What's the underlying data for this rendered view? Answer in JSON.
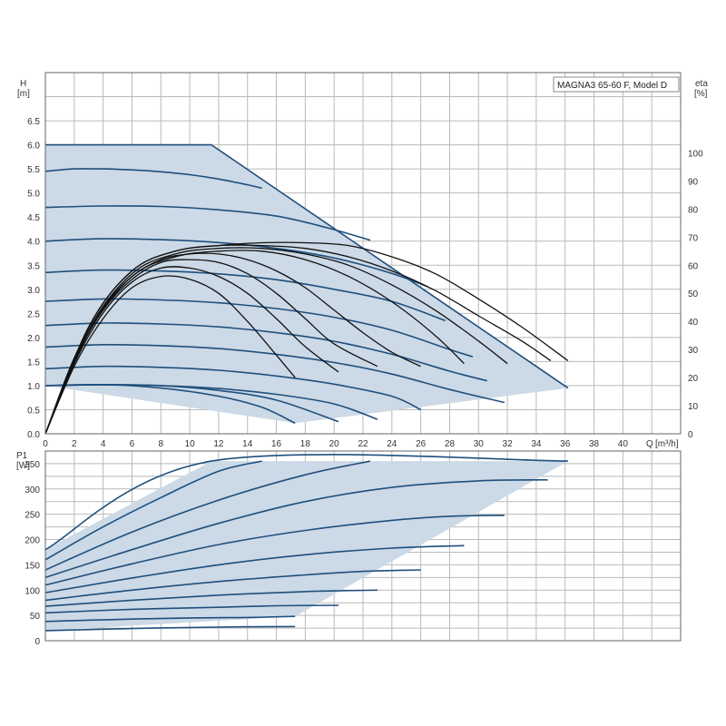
{
  "chart_data": [
    {
      "type": "line",
      "title": "MAGNA3 65-60 F, Model D",
      "xlabel": "Q",
      "xunit": "[m³/h]",
      "ylabel": "H",
      "yunit": "[m]",
      "y2label": "eta",
      "y2unit": "[%]",
      "xlim": [
        0,
        44
      ],
      "ylim": [
        0,
        7.5
      ],
      "y2lim": [
        0,
        128.57
      ],
      "grid": true,
      "x_ticks": [
        "0",
        "2",
        "4",
        "6",
        "8",
        "10",
        "12",
        "14",
        "16",
        "18",
        "20",
        "22",
        "24",
        "26",
        "28",
        "30",
        "32",
        "34",
        "36",
        "38",
        "40"
      ],
      "y_ticks": [
        "0.0",
        "0.5",
        "1.0",
        "1.5",
        "2.0",
        "2.5",
        "3.0",
        "3.5",
        "4.0",
        "4.5",
        "5.0",
        "5.5",
        "6.0",
        "6.5"
      ],
      "y2_ticks": [
        "0",
        "10",
        "20",
        "30",
        "40",
        "50",
        "60",
        "70",
        "80",
        "90",
        "100"
      ],
      "operating_area": {
        "x": [
          0,
          11.5,
          36.2,
          17.3,
          0
        ],
        "y": [
          6.0,
          6.0,
          0.95,
          0.22,
          1.0
        ]
      },
      "pump_curves": [
        {
          "x": [
            0,
            2,
            4,
            6,
            8,
            10,
            11.5
          ],
          "y": [
            6.0,
            6.0,
            6.0,
            6.0,
            6.0,
            6.0,
            6.0
          ]
        },
        {
          "x": [
            0,
            2,
            4,
            6,
            8,
            10,
            12,
            14,
            15.0
          ],
          "y": [
            5.45,
            5.5,
            5.5,
            5.48,
            5.44,
            5.38,
            5.29,
            5.17,
            5.1
          ]
        },
        {
          "x": [
            0,
            4,
            8,
            12,
            16,
            19.5,
            22.5
          ],
          "y": [
            4.7,
            4.73,
            4.72,
            4.65,
            4.52,
            4.28,
            4.02
          ]
        },
        {
          "x": [
            0,
            4,
            8,
            12,
            16,
            20,
            24,
            26.5
          ],
          "y": [
            4.0,
            4.05,
            4.03,
            3.97,
            3.85,
            3.65,
            3.33,
            3.05
          ]
        },
        {
          "x": [
            0,
            4,
            8,
            12,
            16,
            20,
            24,
            27.7
          ],
          "y": [
            3.35,
            3.4,
            3.38,
            3.32,
            3.2,
            3.0,
            2.75,
            2.35
          ]
        },
        {
          "x": [
            0,
            4,
            8,
            12,
            16,
            20,
            24,
            28,
            29.6
          ],
          "y": [
            2.75,
            2.8,
            2.78,
            2.72,
            2.6,
            2.42,
            2.15,
            1.75,
            1.6
          ]
        },
        {
          "x": [
            0,
            4,
            8,
            12,
            16,
            20,
            24,
            28,
            30.6
          ],
          "y": [
            2.25,
            2.3,
            2.28,
            2.22,
            2.1,
            1.92,
            1.65,
            1.3,
            1.1
          ]
        },
        {
          "x": [
            0,
            4,
            8,
            12,
            16,
            20,
            24,
            28,
            31.8
          ],
          "y": [
            1.8,
            1.85,
            1.83,
            1.77,
            1.65,
            1.48,
            1.24,
            0.92,
            0.65
          ]
        },
        {
          "x": [
            0,
            4,
            8,
            12,
            16,
            20,
            24,
            26.0
          ],
          "y": [
            1.35,
            1.4,
            1.38,
            1.32,
            1.2,
            1.03,
            0.78,
            0.5
          ]
        },
        {
          "x": [
            0,
            4,
            8,
            12,
            16,
            20,
            23.0
          ],
          "y": [
            1.0,
            1.02,
            1.0,
            0.94,
            0.82,
            0.62,
            0.3
          ]
        },
        {
          "x": [
            0,
            4,
            8,
            12,
            16,
            20.3
          ],
          "y": [
            1.0,
            1.02,
            1.0,
            0.9,
            0.7,
            0.25
          ]
        },
        {
          "x": [
            0,
            4,
            8,
            12,
            15,
            17.3
          ],
          "y": [
            1.0,
            1.02,
            0.95,
            0.78,
            0.55,
            0.22
          ]
        }
      ],
      "efficiency_curves": [
        {
          "x": [
            0,
            2,
            4,
            6,
            8,
            10,
            12,
            14,
            16,
            17.3
          ],
          "eta": [
            0,
            24,
            41,
            52,
            56,
            55,
            50,
            40,
            28,
            20
          ]
        },
        {
          "x": [
            0,
            2,
            4,
            6,
            8,
            10,
            12,
            14,
            16,
            18,
            20.3
          ],
          "eta": [
            0,
            25,
            43,
            54,
            59,
            59,
            56,
            50,
            41,
            31,
            22
          ]
        },
        {
          "x": [
            0,
            2,
            4,
            6,
            8,
            10,
            12,
            14,
            16,
            18,
            20,
            23.0
          ],
          "eta": [
            0,
            26,
            44,
            55,
            61,
            62,
            61,
            57,
            50,
            41,
            32,
            24
          ]
        },
        {
          "x": [
            0,
            2,
            4,
            6,
            8,
            10,
            12,
            14,
            16,
            18,
            20,
            22,
            24,
            26.0
          ],
          "eta": [
            0,
            27,
            45,
            56,
            62,
            64,
            64,
            62,
            58,
            52,
            44,
            36,
            29,
            24
          ]
        },
        {
          "x": [
            0,
            3,
            6,
            9,
            12,
            15,
            18,
            21,
            24,
            27,
            29.0
          ],
          "eta": [
            0,
            36,
            56,
            63,
            65,
            65,
            62,
            56,
            47,
            35,
            25
          ]
        },
        {
          "x": [
            0,
            3,
            6,
            9,
            12,
            15,
            18,
            21,
            24,
            27,
            30,
            32.0
          ],
          "eta": [
            0,
            37,
            57,
            64,
            66,
            66,
            64,
            60,
            53,
            44,
            33,
            25
          ]
        },
        {
          "x": [
            0,
            3,
            6,
            9,
            12,
            15,
            18,
            21,
            24,
            27,
            30,
            33,
            35.0
          ],
          "eta": [
            0,
            38,
            58,
            65,
            67,
            67,
            66,
            63,
            58,
            51,
            42,
            33,
            26
          ]
        },
        {
          "x": [
            0,
            3,
            6,
            9,
            12,
            15,
            18,
            21,
            24,
            27,
            30,
            33,
            36.2
          ],
          "eta": [
            0,
            38,
            58,
            65,
            67,
            68,
            68,
            67,
            63,
            57,
            48,
            38,
            26
          ]
        }
      ]
    },
    {
      "type": "line",
      "xlabel": "",
      "ylabel": "P1",
      "yunit": "[W]",
      "xlim": [
        0,
        44
      ],
      "ylim": [
        0,
        375
      ],
      "grid": true,
      "y_ticks": [
        "0",
        "50",
        "100",
        "150",
        "200",
        "250",
        "300",
        "350"
      ],
      "operating_area": {
        "x": [
          0,
          11.5,
          36.2,
          17.3,
          0
        ],
        "y": [
          180,
          355,
          355,
          48,
          20
        ]
      },
      "power_curves": [
        {
          "x": [
            0,
            11.5,
            36.2
          ],
          "y": [
            180,
            355,
            355
          ]
        },
        {
          "x": [
            0,
            4,
            8,
            12,
            15.0
          ],
          "y": [
            160,
            225,
            283,
            335,
            355
          ]
        },
        {
          "x": [
            0,
            6,
            12,
            18,
            22.5
          ],
          "y": [
            140,
            215,
            278,
            328,
            355
          ]
        },
        {
          "x": [
            0,
            6,
            12,
            18,
            24,
            30,
            34.8
          ],
          "y": [
            125,
            180,
            232,
            275,
            303,
            316,
            318
          ]
        },
        {
          "x": [
            0,
            6,
            12,
            18,
            24,
            28,
            31.8
          ],
          "y": [
            110,
            152,
            190,
            218,
            238,
            246,
            248
          ]
        },
        {
          "x": [
            0,
            6,
            12,
            18,
            24,
            29.0
          ],
          "y": [
            95,
            124,
            150,
            170,
            183,
            188
          ]
        },
        {
          "x": [
            0,
            6,
            12,
            18,
            22,
            26.0
          ],
          "y": [
            80,
            100,
            117,
            130,
            137,
            140
          ]
        },
        {
          "x": [
            0,
            6,
            12,
            18,
            23.0
          ],
          "y": [
            68,
            80,
            90,
            97,
            100
          ]
        },
        {
          "x": [
            0,
            6,
            12,
            16,
            20.3
          ],
          "y": [
            55,
            62,
            66,
            69,
            70
          ]
        },
        {
          "x": [
            0,
            5,
            10,
            14,
            17.3
          ],
          "y": [
            38,
            42,
            45,
            46,
            48
          ]
        },
        {
          "x": [
            0,
            6,
            12,
            17.3
          ],
          "y": [
            20,
            24,
            27,
            28
          ]
        }
      ]
    }
  ],
  "colors": {
    "area_fill": "#ccd9e6",
    "pump_curve": "#1e4f7d",
    "efficiency_curve": "#111111",
    "grid": "#b9b9b9",
    "frame": "#666666",
    "text": "#333333"
  }
}
